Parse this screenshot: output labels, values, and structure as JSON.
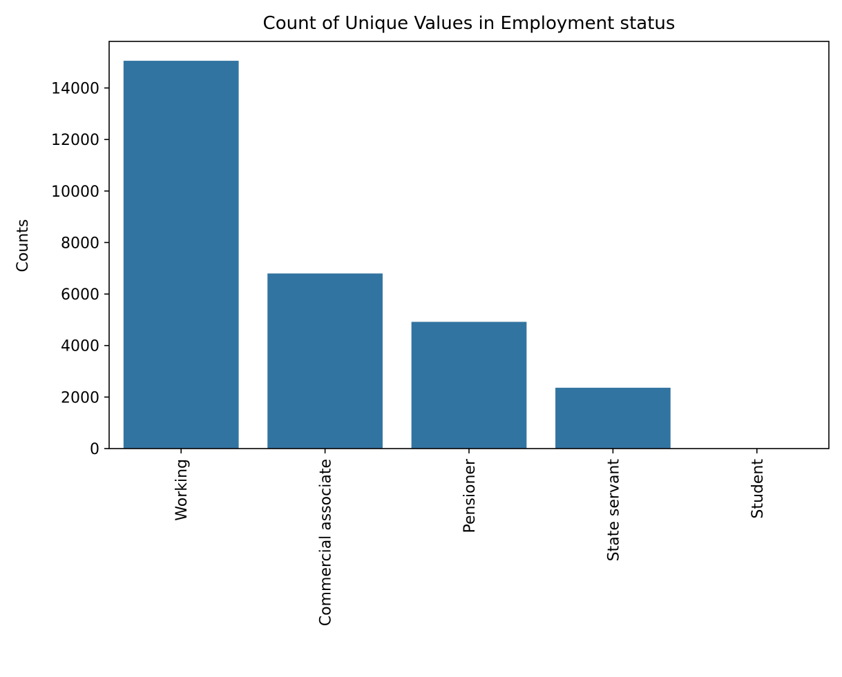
{
  "chart_data": {
    "type": "bar",
    "title": "Count of Unique Values in Employment status",
    "xlabel": "",
    "ylabel": "Counts",
    "categories": [
      "Working",
      "Commercial associate",
      "Pensioner",
      "State servant",
      "Student"
    ],
    "values": [
      15056,
      6798,
      4920,
      2362,
      10
    ],
    "ylim": [
      0,
      15808
    ],
    "yticks": [
      0,
      2000,
      4000,
      6000,
      8000,
      10000,
      12000,
      14000
    ],
    "bar_color": "#3274a1",
    "grid": false,
    "legend": "none",
    "xtick_rotation": "vertical"
  }
}
